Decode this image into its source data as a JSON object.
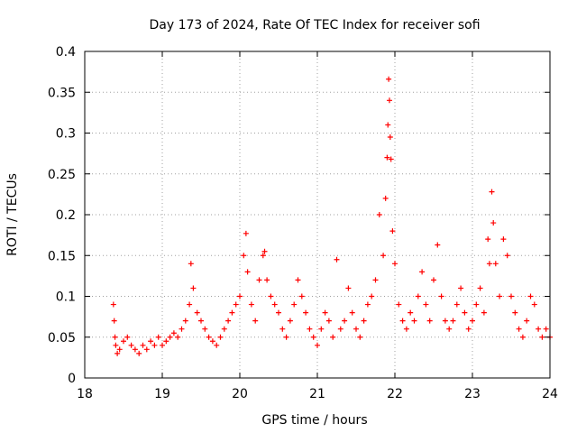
{
  "chart_data": {
    "type": "scatter",
    "title": "Day 173 of 2024, Rate Of TEC Index for receiver sofi",
    "xlabel": "GPS time / hours",
    "ylabel": "ROTI / TECUs",
    "xlim": [
      18,
      24
    ],
    "ylim": [
      0,
      0.4
    ],
    "xticks": [
      18,
      19,
      20,
      21,
      22,
      23,
      24
    ],
    "yticks": [
      0,
      0.05,
      0.1,
      0.15,
      0.2,
      0.25,
      0.3,
      0.35,
      0.4
    ],
    "xtick_labels": [
      "18",
      "19",
      "20",
      "21",
      "22",
      "23",
      "24"
    ],
    "ytick_labels": [
      "0",
      "0.05",
      "0.1",
      "0.15",
      "0.2",
      "0.25",
      "0.3",
      "0.35",
      "0.4"
    ],
    "grid": true,
    "marker": "+",
    "marker_color": "#ff0000",
    "series": [
      {
        "name": "ROTI",
        "x": [
          18.37,
          18.38,
          18.39,
          18.4,
          18.42,
          18.45,
          18.5,
          18.55,
          18.6,
          18.65,
          18.7,
          18.75,
          18.8,
          18.85,
          18.9,
          18.95,
          19.0,
          19.05,
          19.1,
          19.15,
          19.2,
          19.25,
          19.3,
          19.35,
          19.37,
          19.4,
          19.45,
          19.5,
          19.55,
          19.6,
          19.65,
          19.7,
          19.75,
          19.8,
          19.85,
          19.9,
          19.95,
          20.0,
          20.05,
          20.08,
          20.1,
          20.15,
          20.2,
          20.25,
          20.3,
          20.32,
          20.35,
          20.4,
          20.45,
          20.5,
          20.55,
          20.6,
          20.65,
          20.7,
          20.75,
          20.8,
          20.85,
          20.9,
          20.95,
          21.0,
          21.05,
          21.1,
          21.15,
          21.2,
          21.25,
          21.3,
          21.35,
          21.4,
          21.45,
          21.5,
          21.55,
          21.6,
          21.65,
          21.7,
          21.75,
          21.8,
          21.85,
          21.88,
          21.9,
          21.91,
          21.92,
          21.93,
          21.94,
          21.95,
          21.97,
          22.0,
          22.05,
          22.1,
          22.15,
          22.2,
          22.25,
          22.3,
          22.35,
          22.4,
          22.45,
          22.5,
          22.55,
          22.6,
          22.65,
          22.7,
          22.75,
          22.8,
          22.85,
          22.9,
          22.95,
          23.0,
          23.05,
          23.1,
          23.15,
          23.2,
          23.22,
          23.25,
          23.27,
          23.3,
          23.35,
          23.4,
          23.45,
          23.5,
          23.55,
          23.6,
          23.65,
          23.7,
          23.75,
          23.8,
          23.85,
          23.9,
          23.95,
          24.0
        ],
        "y": [
          0.09,
          0.07,
          0.05,
          0.04,
          0.03,
          0.035,
          0.045,
          0.05,
          0.04,
          0.035,
          0.03,
          0.04,
          0.035,
          0.045,
          0.04,
          0.05,
          0.04,
          0.045,
          0.05,
          0.055,
          0.05,
          0.06,
          0.07,
          0.09,
          0.14,
          0.11,
          0.08,
          0.07,
          0.06,
          0.05,
          0.045,
          0.04,
          0.05,
          0.06,
          0.07,
          0.08,
          0.09,
          0.1,
          0.15,
          0.177,
          0.13,
          0.09,
          0.07,
          0.12,
          0.15,
          0.155,
          0.12,
          0.1,
          0.09,
          0.08,
          0.06,
          0.05,
          0.07,
          0.09,
          0.12,
          0.1,
          0.08,
          0.06,
          0.05,
          0.04,
          0.06,
          0.08,
          0.07,
          0.05,
          0.145,
          0.06,
          0.07,
          0.11,
          0.08,
          0.06,
          0.05,
          0.07,
          0.09,
          0.1,
          0.12,
          0.2,
          0.15,
          0.22,
          0.27,
          0.31,
          0.366,
          0.34,
          0.295,
          0.268,
          0.18,
          0.14,
          0.09,
          0.07,
          0.06,
          0.08,
          0.07,
          0.1,
          0.13,
          0.09,
          0.07,
          0.12,
          0.163,
          0.1,
          0.07,
          0.06,
          0.07,
          0.09,
          0.11,
          0.08,
          0.06,
          0.07,
          0.09,
          0.11,
          0.08,
          0.17,
          0.14,
          0.228,
          0.19,
          0.14,
          0.1,
          0.17,
          0.15,
          0.1,
          0.08,
          0.06,
          0.05,
          0.07,
          0.1,
          0.09,
          0.06,
          0.05,
          0.06,
          0.05
        ]
      }
    ]
  }
}
